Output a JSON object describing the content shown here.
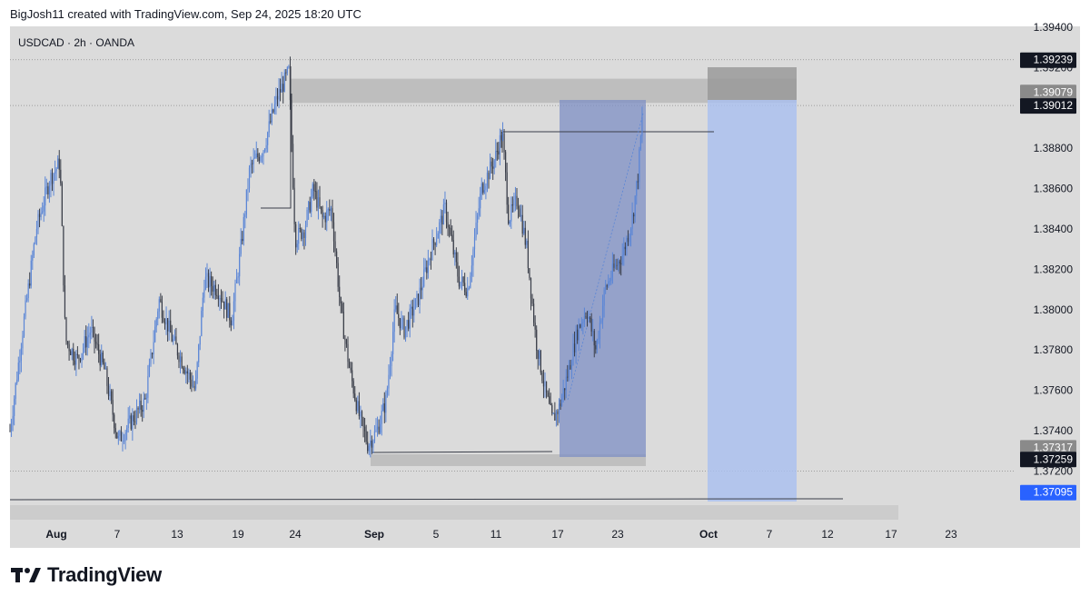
{
  "header": {
    "text": "BigJosh11 created with TradingView.com, Sep 24, 2025 18:20 UTC"
  },
  "footer": {
    "logo_text": "TradingView"
  },
  "colors": {
    "background": "#dbdbdb",
    "candle_up": "#5b86d6",
    "candle_down": "#3a3e49",
    "zone_blue_dark": "#7d8fc4",
    "zone_blue_light": "#a9bff0",
    "zone_grey": "#b8b8b8",
    "label_black": "#131722",
    "label_grey": "#8a8a8a",
    "label_blue": "#2962ff"
  },
  "chart_data": {
    "type": "candlestick",
    "title": "USDCAD · 2h · OANDA",
    "symbol": "USDCAD",
    "interval": "2h",
    "source": "OANDA",
    "ylim": [
      1.3695,
      1.3943
    ],
    "y_ticks": [
      "1.39400",
      "1.39200",
      "1.38800",
      "1.38600",
      "1.38400",
      "1.38200",
      "1.38000",
      "1.37800",
      "1.37600",
      "1.37400",
      "1.37200"
    ],
    "x_ticks": [
      "Aug",
      "7",
      "13",
      "19",
      "24",
      "Sep",
      "5",
      "11",
      "17",
      "23",
      "Oct",
      "7",
      "12",
      "17",
      "23"
    ],
    "price_labels": [
      {
        "value": 1.39239,
        "text": "1.39239",
        "style": "black"
      },
      {
        "value": 1.39079,
        "text": "1.39079",
        "style": "grey"
      },
      {
        "value": 1.39012,
        "text": "1.39012",
        "style": "black"
      },
      {
        "value": 1.37317,
        "text": "1.37317",
        "style": "grey"
      },
      {
        "value": 1.37259,
        "text": "1.37259",
        "style": "black"
      },
      {
        "value": 1.37095,
        "text": "1.37095",
        "style": "blue"
      }
    ],
    "approximate_close_path": [
      {
        "date": "Jul 31",
        "price": 1.3742
      },
      {
        "date": "Aug 1",
        "price": 1.3875
      },
      {
        "date": "Aug 4",
        "price": 1.3775
      },
      {
        "date": "Aug 7",
        "price": 1.376
      },
      {
        "date": "Aug 8",
        "price": 1.373
      },
      {
        "date": "Aug 11",
        "price": 1.38
      },
      {
        "date": "Aug 13",
        "price": 1.3778
      },
      {
        "date": "Aug 15",
        "price": 1.381
      },
      {
        "date": "Aug 18",
        "price": 1.382
      },
      {
        "date": "Aug 20",
        "price": 1.3868
      },
      {
        "date": "Aug 22",
        "price": 1.3915
      },
      {
        "date": "Aug 25",
        "price": 1.3825
      },
      {
        "date": "Aug 27",
        "price": 1.3858
      },
      {
        "date": "Aug 29",
        "price": 1.381
      },
      {
        "date": "Sep 2",
        "price": 1.373
      },
      {
        "date": "Sep 4",
        "price": 1.3795
      },
      {
        "date": "Sep 5",
        "price": 1.3835
      },
      {
        "date": "Sep 8",
        "price": 1.381
      },
      {
        "date": "Sep 10",
        "price": 1.386
      },
      {
        "date": "Sep 11",
        "price": 1.389
      },
      {
        "date": "Sep 12",
        "price": 1.3845
      },
      {
        "date": "Sep 15",
        "price": 1.383
      },
      {
        "date": "Sep 16",
        "price": 1.375
      },
      {
        "date": "Sep 17",
        "price": 1.3745
      },
      {
        "date": "Sep 19",
        "price": 1.38
      },
      {
        "date": "Sep 22",
        "price": 1.3825
      },
      {
        "date": "Sep 23",
        "price": 1.3845
      },
      {
        "date": "Sep 24",
        "price": 1.3901
      }
    ]
  }
}
